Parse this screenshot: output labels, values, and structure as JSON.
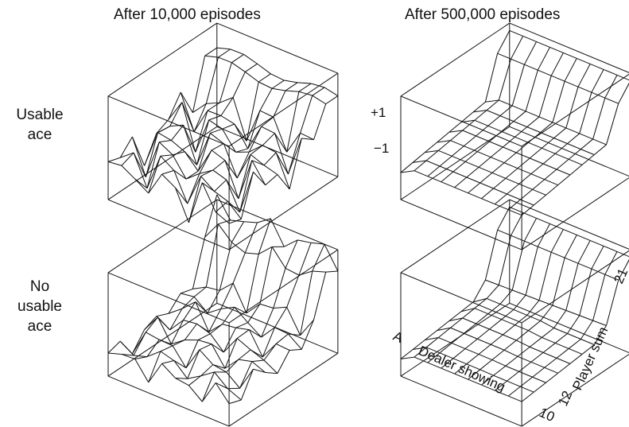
{
  "titles": {
    "col1": "After 10,000 episodes",
    "col2": "After 500,000 episodes"
  },
  "rows": {
    "usable_top": "Usable",
    "usable_bottom": "ace",
    "nousable_top": "No",
    "nousable_mid": "usable",
    "nousable_bottom": "ace"
  },
  "axis": {
    "z_top": "+1",
    "z_bottom": "−1",
    "dealer_start": "A",
    "dealer_end": "10",
    "dealer_label": "Dealer showing",
    "player_start": "12",
    "player_end": "21",
    "player_label": "Player sum"
  },
  "colors": {
    "line": "#111111",
    "background": "#ffffff"
  }
}
